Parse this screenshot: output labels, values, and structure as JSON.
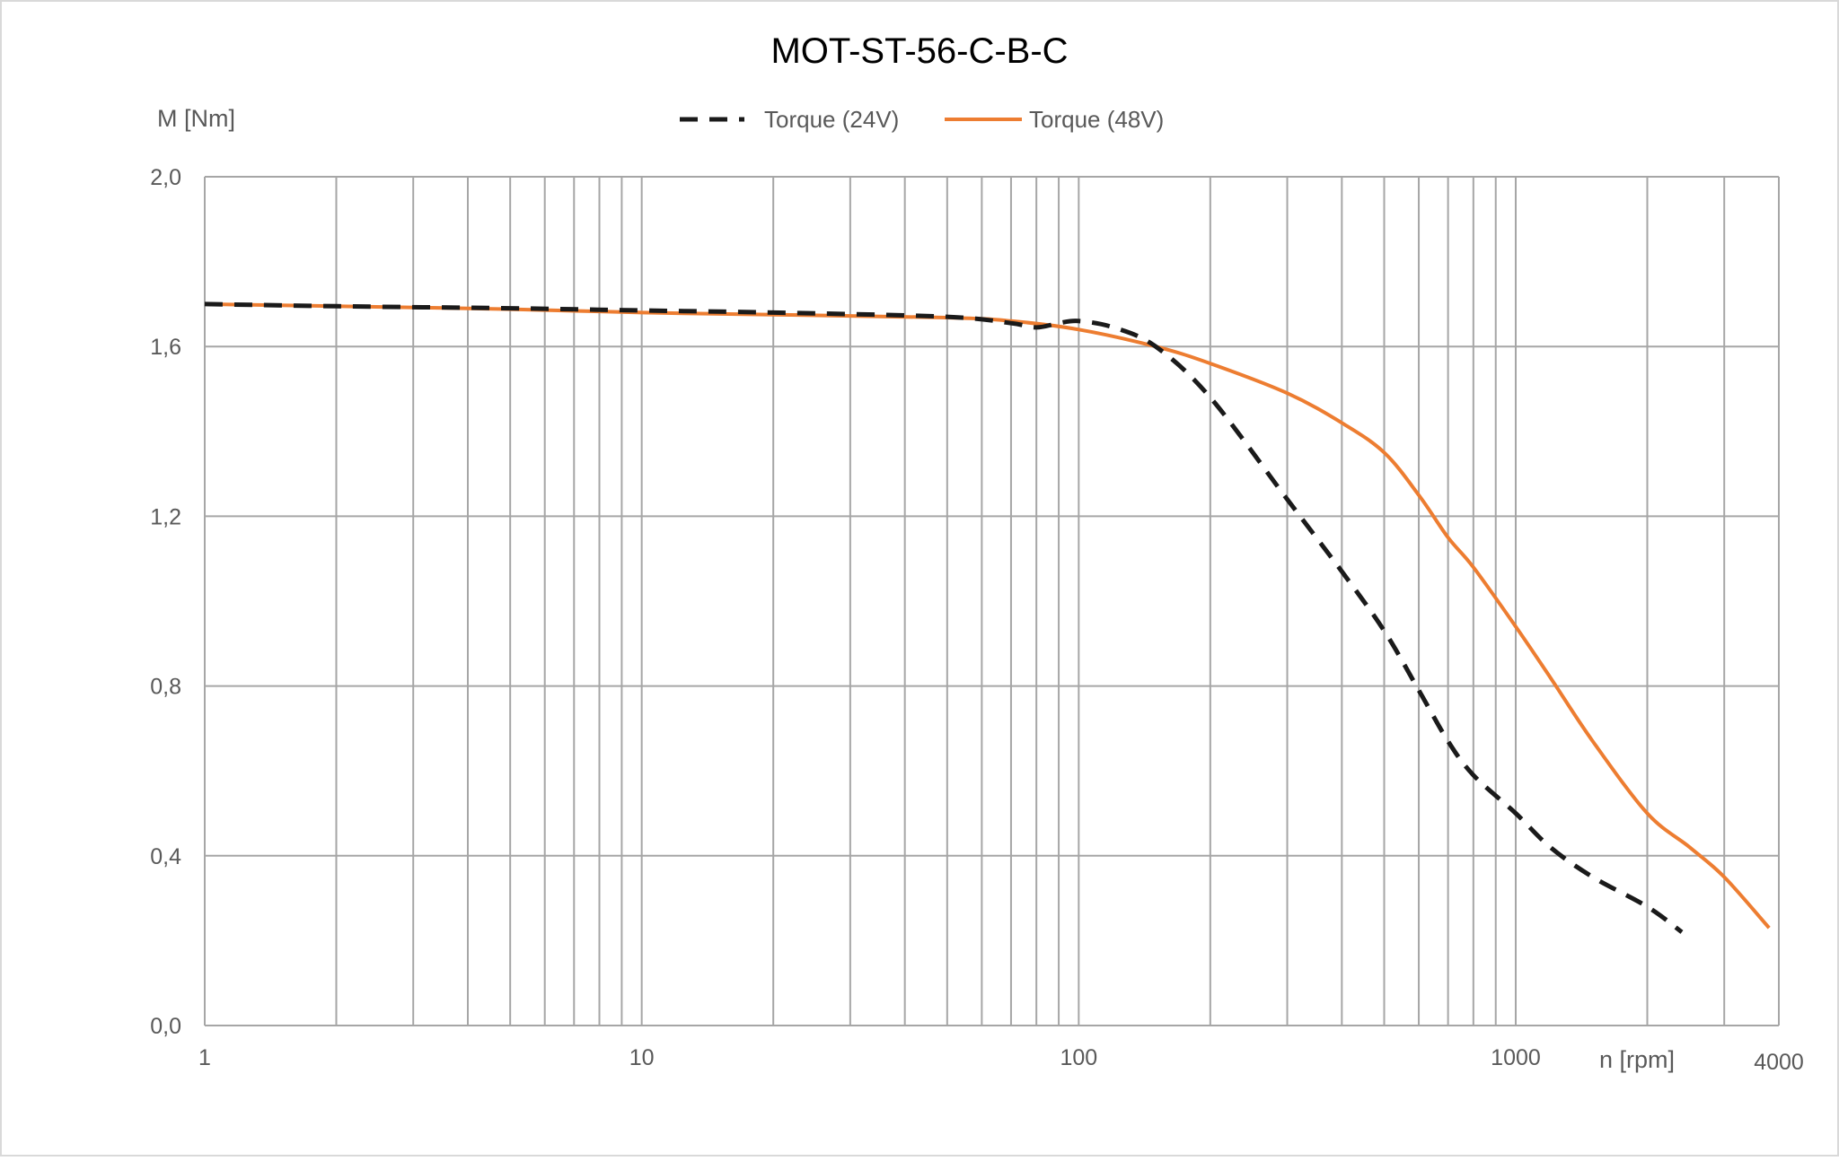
{
  "chart_data": {
    "type": "line",
    "title": "MOT-ST-56-C-B-C",
    "xlabel": "n [rpm]",
    "ylabel": "M [Nm]",
    "x_scale": "log",
    "xlim": [
      1,
      4000
    ],
    "ylim": [
      0,
      2.0
    ],
    "grid": true,
    "legend_position": "top-center",
    "x_tick_labels": [
      "1",
      "10",
      "100",
      "1000",
      "4000"
    ],
    "y_tick_labels": [
      "0,0",
      "0,4",
      "0,8",
      "1,2",
      "1,6",
      "2,0"
    ],
    "y_ticks": [
      0,
      0.4,
      0.8,
      1.2,
      1.6,
      2.0
    ],
    "series": [
      {
        "name": "Torque (24V)",
        "color": "#1a1a1a",
        "style": "dashed",
        "x": [
          1,
          2,
          5,
          10,
          20,
          50,
          70,
          80,
          90,
          100,
          120,
          150,
          200,
          300,
          400,
          500,
          600,
          700,
          800,
          1000,
          1200,
          1500,
          2000,
          2400
        ],
        "y": [
          1.7,
          1.695,
          1.69,
          1.685,
          1.68,
          1.67,
          1.655,
          1.645,
          1.655,
          1.66,
          1.645,
          1.6,
          1.48,
          1.24,
          1.07,
          0.93,
          0.79,
          0.67,
          0.59,
          0.5,
          0.42,
          0.35,
          0.28,
          0.22
        ]
      },
      {
        "name": "Torque (48V)",
        "color": "#ed7d31",
        "style": "solid",
        "x": [
          1,
          2,
          5,
          10,
          20,
          50,
          70,
          100,
          150,
          200,
          300,
          400,
          500,
          600,
          700,
          800,
          1000,
          1200,
          1500,
          2000,
          2500,
          3000,
          3800
        ],
        "y": [
          1.7,
          1.695,
          1.688,
          1.68,
          1.675,
          1.668,
          1.66,
          1.64,
          1.6,
          1.56,
          1.49,
          1.42,
          1.35,
          1.25,
          1.15,
          1.08,
          0.94,
          0.82,
          0.67,
          0.5,
          0.42,
          0.35,
          0.23
        ]
      }
    ]
  }
}
